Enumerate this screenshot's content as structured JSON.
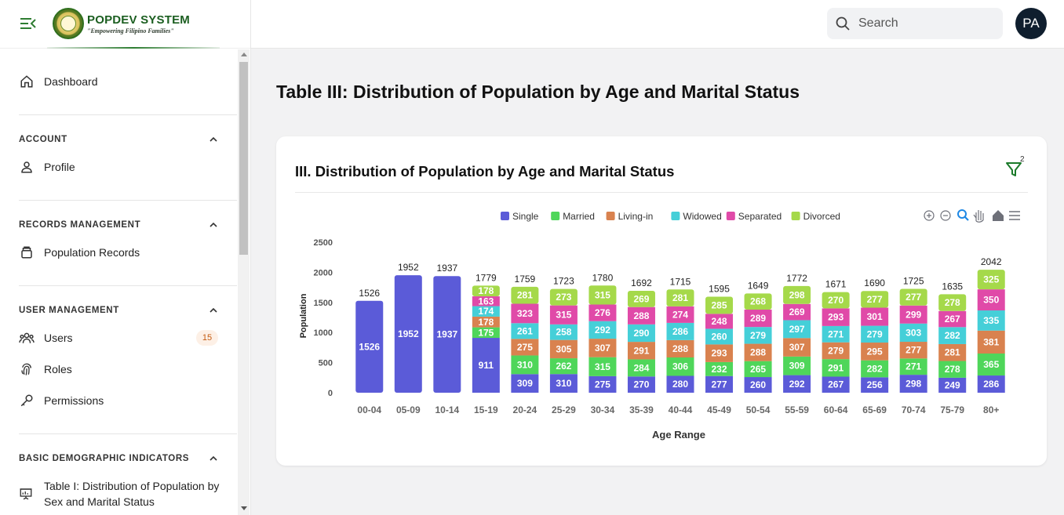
{
  "brand": {
    "name": "POPDEV SYSTEM",
    "tagline": "\"Empowering Filipino Families\""
  },
  "search": {
    "placeholder": "Search"
  },
  "user": {
    "initials": "PA"
  },
  "sidebar": {
    "dashboard": "Dashboard",
    "account_title": "ACCOUNT",
    "profile": "Profile",
    "records_title": "RECORDS MANAGEMENT",
    "population_records": "Population Records",
    "user_mgmt_title": "USER MANAGEMENT",
    "users": "Users",
    "users_count": "15",
    "roles": "Roles",
    "permissions": "Permissions",
    "demographic_title": "BASIC DEMOGRAPHIC INDICATORS",
    "table1": "Table I: Distribution of Population by Sex and Marital Status"
  },
  "page": {
    "title": "Table III: Distribution of Population by Age and Marital Status"
  },
  "card": {
    "title": "III. Distribution of Population by Age and Marital Status",
    "filter_count": "2"
  },
  "colors": {
    "Single": "#5b5bd8",
    "Married": "#4fd65a",
    "Living-in": "#d9824f",
    "Widowed": "#45cfd8",
    "Separated": "#e04aa8",
    "Divorced": "#a5d94a",
    "brand": "#1b5e20"
  },
  "chart_data": {
    "type": "bar",
    "stacked": true,
    "title": "",
    "xlabel": "Age Range",
    "ylabel": "Population",
    "ylim": [
      0,
      2500
    ],
    "yticks": [
      0,
      500,
      1000,
      1500,
      2000,
      2500
    ],
    "legend_position": "top-center",
    "categories": [
      "00-04",
      "05-09",
      "10-14",
      "15-19",
      "20-24",
      "25-29",
      "30-34",
      "35-39",
      "40-44",
      "45-49",
      "50-54",
      "55-59",
      "60-64",
      "65-69",
      "70-74",
      "75-79",
      "80+"
    ],
    "totals": [
      1526,
      1952,
      1937,
      1779,
      1759,
      1723,
      1780,
      1692,
      1715,
      1595,
      1649,
      1772,
      1671,
      1690,
      1725,
      1635,
      2042
    ],
    "series": [
      {
        "name": "Single",
        "values": [
          1526,
          1952,
          1937,
          911,
          309,
          310,
          275,
          270,
          280,
          277,
          260,
          292,
          267,
          256,
          298,
          249,
          286
        ]
      },
      {
        "name": "Married",
        "values": [
          0,
          0,
          0,
          175,
          310,
          262,
          315,
          284,
          306,
          232,
          265,
          309,
          291,
          282,
          271,
          278,
          365
        ]
      },
      {
        "name": "Living-in",
        "values": [
          0,
          0,
          0,
          178,
          275,
          305,
          307,
          291,
          288,
          293,
          288,
          307,
          279,
          295,
          277,
          281,
          381
        ]
      },
      {
        "name": "Widowed",
        "values": [
          0,
          0,
          0,
          174,
          261,
          258,
          292,
          290,
          286,
          260,
          279,
          297,
          271,
          279,
          303,
          282,
          335
        ]
      },
      {
        "name": "Separated",
        "values": [
          0,
          0,
          0,
          163,
          323,
          315,
          276,
          288,
          274,
          248,
          289,
          269,
          293,
          301,
          299,
          267,
          350
        ]
      },
      {
        "name": "Divorced",
        "values": [
          0,
          0,
          0,
          178,
          281,
          273,
          315,
          269,
          281,
          285,
          268,
          298,
          270,
          277,
          277,
          278,
          325
        ]
      }
    ]
  }
}
